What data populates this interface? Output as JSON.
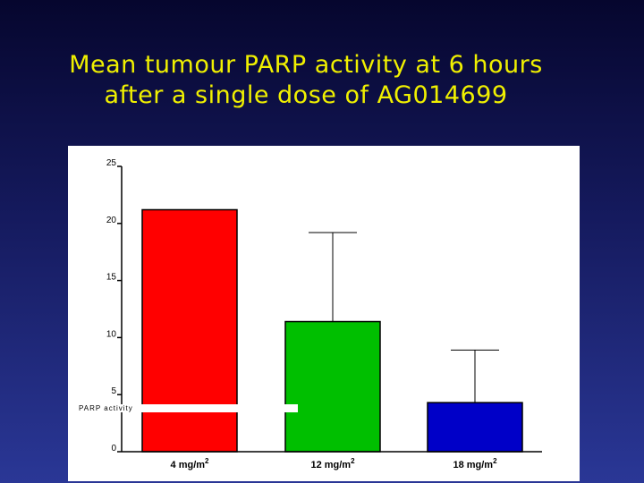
{
  "title": {
    "line1": "Mean tumour PARP activity at 6 hours",
    "line2": "after a single dose of AG014699"
  },
  "chart_data": {
    "type": "bar",
    "categories": [
      "4 mg/m2",
      "12 mg/m2",
      "18 mg/m2"
    ],
    "category_labels": [
      {
        "base": "4 mg/m",
        "sup": "2"
      },
      {
        "base": "12 mg/m",
        "sup": "2"
      },
      {
        "base": "18 mg/m",
        "sup": "2"
      }
    ],
    "values": [
      21.2,
      11.4,
      4.3
    ],
    "error_upper": [
      null,
      19.2,
      8.9
    ],
    "colors": [
      "#ff0000",
      "#00bf00",
      "#0000c8"
    ],
    "ylim": [
      0,
      25
    ],
    "yticks": [
      0,
      5,
      10,
      15,
      20,
      25
    ],
    "ylabel": "PARP activity",
    "xlabel": "",
    "grid": false,
    "legend": "none"
  }
}
